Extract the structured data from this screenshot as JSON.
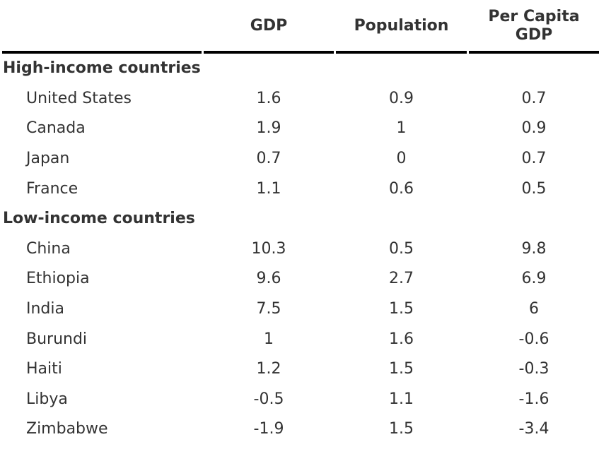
{
  "colors": {
    "text": "#333333",
    "rule": "#000000"
  },
  "chart_data": {
    "type": "table",
    "columns": [
      "",
      "GDP",
      "Population",
      "Per Capita GDP"
    ],
    "groups": [
      {
        "label": "High-income countries",
        "rows": [
          {
            "country": "United States",
            "values": [
              "1.6",
              "0.9",
              "0.7"
            ]
          },
          {
            "country": "Canada",
            "values": [
              "1.9",
              "1",
              "0.9"
            ]
          },
          {
            "country": "Japan",
            "values": [
              "0.7",
              "0",
              "0.7"
            ]
          },
          {
            "country": "France",
            "values": [
              "1.1",
              "0.6",
              "0.5"
            ]
          }
        ]
      },
      {
        "label": "Low-income countries",
        "rows": [
          {
            "country": "China",
            "values": [
              "10.3",
              "0.5",
              "9.8"
            ]
          },
          {
            "country": "Ethiopia",
            "values": [
              "9.6",
              "2.7",
              "6.9"
            ]
          },
          {
            "country": "India",
            "values": [
              "7.5",
              "1.5",
              "6"
            ]
          },
          {
            "country": "Burundi",
            "values": [
              "1",
              "1.6",
              "-0.6"
            ]
          },
          {
            "country": "Haiti",
            "values": [
              "1.2",
              "1.5",
              "-0.3"
            ]
          },
          {
            "country": "Libya",
            "values": [
              "-0.5",
              "1.1",
              "-1.6"
            ]
          },
          {
            "country": "Zimbabwe",
            "values": [
              "-1.9",
              "1.5",
              "-3.4"
            ]
          }
        ]
      }
    ],
    "layout": {
      "header_rule": true,
      "grid": false,
      "value_alignment": "center"
    }
  }
}
